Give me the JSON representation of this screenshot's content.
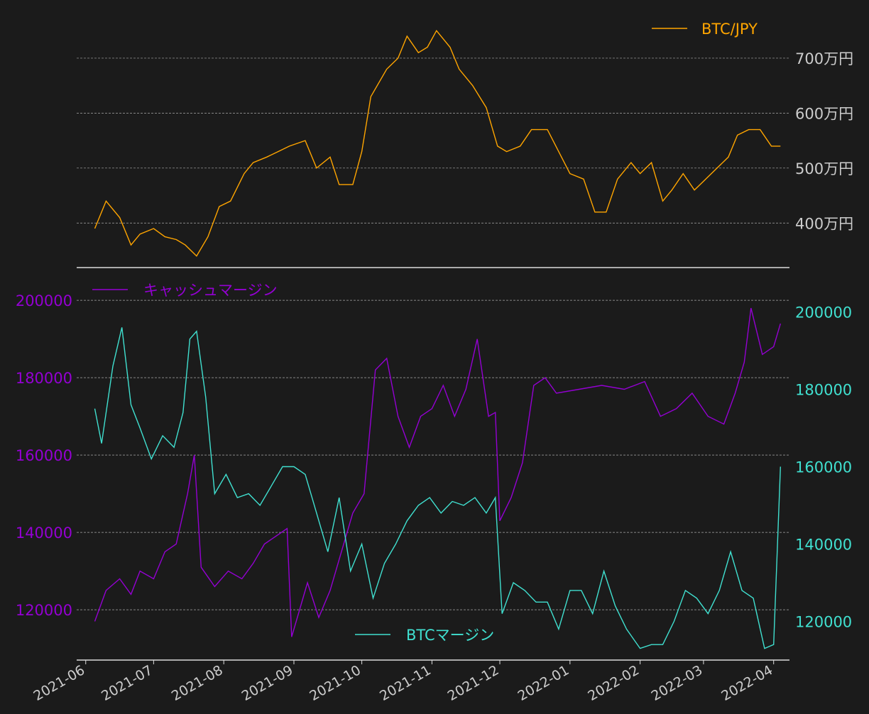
{
  "chart_data": [
    {
      "type": "line",
      "series": [
        {
          "name": "BTC/JPY",
          "color": "#ffa500",
          "x": [
            "2021-06-05",
            "2021-06-10",
            "2021-06-16",
            "2021-06-21",
            "2021-06-25",
            "2021-07-01",
            "2021-07-06",
            "2021-07-11",
            "2021-07-15",
            "2021-07-20",
            "2021-07-25",
            "2021-07-30",
            "2021-08-04",
            "2021-08-10",
            "2021-08-14",
            "2021-08-20",
            "2021-08-25",
            "2021-08-30",
            "2021-09-06",
            "2021-09-11",
            "2021-09-17",
            "2021-09-21",
            "2021-09-27",
            "2021-10-01",
            "2021-10-05",
            "2021-10-12",
            "2021-10-17",
            "2021-10-21",
            "2021-10-26",
            "2021-10-30",
            "2021-11-03",
            "2021-11-09",
            "2021-11-13",
            "2021-11-19",
            "2021-11-25",
            "2021-11-30",
            "2021-12-04",
            "2021-12-10",
            "2021-12-15",
            "2021-12-22",
            "2021-12-27",
            "2022-01-01",
            "2022-01-07",
            "2022-01-12",
            "2022-01-17",
            "2022-01-22",
            "2022-01-28",
            "2022-02-01",
            "2022-02-06",
            "2022-02-11",
            "2022-02-15",
            "2022-02-20",
            "2022-02-25",
            "2022-03-02",
            "2022-03-07",
            "2022-03-12",
            "2022-03-16",
            "2022-03-21",
            "2022-03-26",
            "2022-03-31",
            "2022-04-04"
          ],
          "values": [
            390,
            440,
            410,
            360,
            380,
            390,
            375,
            370,
            360,
            340,
            375,
            430,
            440,
            490,
            510,
            520,
            530,
            540,
            550,
            500,
            520,
            470,
            470,
            530,
            630,
            680,
            700,
            740,
            710,
            720,
            750,
            720,
            680,
            650,
            610,
            540,
            530,
            540,
            570,
            570,
            530,
            490,
            480,
            420,
            420,
            480,
            510,
            490,
            510,
            440,
            460,
            490,
            460,
            480,
            500,
            520,
            560,
            570,
            570,
            540,
            540
          ]
        }
      ],
      "ylim": [
        3190000,
        7800000
      ],
      "yticks": [
        4000000,
        5000000,
        6000000,
        7000000
      ],
      "ytick_labels": [
        "400万円",
        "500万円",
        "600万円",
        "700万円"
      ],
      "legend": "top-right",
      "grid": true
    },
    {
      "type": "line",
      "series": [
        {
          "name": "キャッシュマージン",
          "axis": "left",
          "color": "#9400d3",
          "x": [
            "2021-06-05",
            "2021-06-10",
            "2021-06-16",
            "2021-06-21",
            "2021-06-25",
            "2021-07-01",
            "2021-07-06",
            "2021-07-11",
            "2021-07-16",
            "2021-07-19",
            "2021-07-22",
            "2021-07-28",
            "2021-08-03",
            "2021-08-09",
            "2021-08-14",
            "2021-08-19",
            "2021-08-24",
            "2021-08-29",
            "2021-08-31",
            "2021-09-02",
            "2021-09-07",
            "2021-09-12",
            "2021-09-17",
            "2021-09-22",
            "2021-09-27",
            "2021-10-02",
            "2021-10-07",
            "2021-10-12",
            "2021-10-17",
            "2021-10-22",
            "2021-10-27",
            "2021-11-01",
            "2021-11-06",
            "2021-11-11",
            "2021-11-16",
            "2021-11-21",
            "2021-11-26",
            "2021-11-29",
            "2021-12-01",
            "2021-12-06",
            "2021-12-11",
            "2021-12-16",
            "2021-12-21",
            "2021-12-26",
            "2022-01-05",
            "2022-01-15",
            "2022-01-25",
            "2022-02-03",
            "2022-02-10",
            "2022-02-17",
            "2022-02-24",
            "2022-03-03",
            "2022-03-10",
            "2022-03-15",
            "2022-03-19",
            "2022-03-22",
            "2022-03-27",
            "2022-04-01",
            "2022-04-04"
          ],
          "values": [
            117000,
            125000,
            128000,
            124000,
            130000,
            128000,
            135000,
            137000,
            150000,
            160000,
            131000,
            126000,
            130000,
            128000,
            132000,
            137000,
            139000,
            141000,
            113000,
            117000,
            127000,
            118000,
            125000,
            135000,
            145000,
            150000,
            182000,
            185000,
            170000,
            162000,
            170000,
            172000,
            178000,
            170000,
            177000,
            190000,
            170000,
            171000,
            143000,
            149000,
            158000,
            178000,
            180000,
            176000,
            177000,
            178000,
            177000,
            179000,
            170000,
            172000,
            176000,
            170000,
            168000,
            176000,
            184000,
            198000,
            186000,
            188000,
            194000
          ]
        },
        {
          "name": "BTCマージン",
          "axis": "right",
          "color": "#40e0d0",
          "x": [
            "2021-06-05",
            "2021-06-08",
            "2021-06-13",
            "2021-06-17",
            "2021-06-21",
            "2021-06-25",
            "2021-06-30",
            "2021-07-05",
            "2021-07-10",
            "2021-07-14",
            "2021-07-17",
            "2021-07-20",
            "2021-07-24",
            "2021-07-28",
            "2021-08-02",
            "2021-08-07",
            "2021-08-12",
            "2021-08-17",
            "2021-08-22",
            "2021-08-27",
            "2021-09-01",
            "2021-09-06",
            "2021-09-11",
            "2021-09-16",
            "2021-09-21",
            "2021-09-26",
            "2021-10-01",
            "2021-10-06",
            "2021-10-11",
            "2021-10-16",
            "2021-10-21",
            "2021-10-26",
            "2021-10-31",
            "2021-11-05",
            "2021-11-10",
            "2021-11-15",
            "2021-11-20",
            "2021-11-25",
            "2021-11-29",
            "2021-12-02",
            "2021-12-07",
            "2021-12-12",
            "2021-12-17",
            "2021-12-22",
            "2021-12-27",
            "2022-01-01",
            "2022-01-06",
            "2022-01-11",
            "2022-01-16",
            "2022-01-21",
            "2022-01-26",
            "2022-02-01",
            "2022-02-06",
            "2022-02-11",
            "2022-02-16",
            "2022-02-21",
            "2022-02-26",
            "2022-03-03",
            "2022-03-08",
            "2022-03-13",
            "2022-03-18",
            "2022-03-23",
            "2022-03-28",
            "2022-04-01",
            "2022-04-04"
          ],
          "values": [
            175000,
            166000,
            186000,
            196000,
            176000,
            170000,
            162000,
            168000,
            165000,
            174000,
            193000,
            195000,
            178000,
            153000,
            158000,
            152000,
            153000,
            150000,
            155000,
            160000,
            160000,
            158000,
            148000,
            138000,
            152000,
            133000,
            140000,
            126000,
            135000,
            140000,
            146000,
            150000,
            152000,
            148000,
            151000,
            150000,
            152000,
            148000,
            152000,
            122000,
            130000,
            128000,
            125000,
            125000,
            118000,
            128000,
            128000,
            122000,
            133000,
            124000,
            118000,
            113000,
            114000,
            114000,
            120000,
            128000,
            126000,
            122000,
            128000,
            138000,
            128000,
            126000,
            113000,
            114000,
            160000
          ]
        }
      ],
      "ylim_left": [
        107000,
        207000
      ],
      "ylim_right": [
        110000,
        210000
      ],
      "yticks_left": [
        120000,
        140000,
        160000,
        180000,
        200000
      ],
      "yticks_right": [
        120000,
        140000,
        160000,
        180000,
        200000
      ],
      "grid": true,
      "legend_left": "top-left",
      "legend_right": "bottom-center"
    }
  ],
  "x_axis": {
    "tick_labels": [
      "2021-06",
      "2021-07",
      "2021-08",
      "2021-09",
      "2021-10",
      "2021-11",
      "2021-12",
      "2022-01",
      "2022-02",
      "2022-03",
      "2022-04"
    ],
    "tick_dates": [
      "2021-06-01",
      "2021-07-01",
      "2021-08-01",
      "2021-09-01",
      "2021-10-01",
      "2021-11-01",
      "2021-12-01",
      "2022-01-01",
      "2022-02-01",
      "2022-03-01",
      "2022-04-01"
    ],
    "range": [
      "2021-05-28",
      "2022-04-08"
    ]
  },
  "colors": {
    "background": "#1b1b1b",
    "tick_text": "#cccccc",
    "grid": "#aaaaaa",
    "spine": "#dddddd"
  }
}
